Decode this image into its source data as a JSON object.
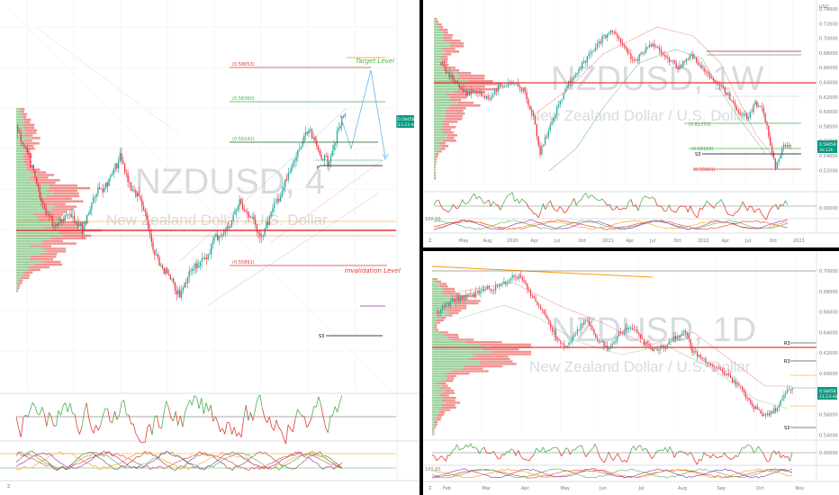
{
  "colors": {
    "up": "#089981",
    "up_fill": "#26a69a",
    "down": "#f23645",
    "green": "#4caf50",
    "red": "#e53935",
    "orange": "#ff9800",
    "purple": "#9c27b0",
    "grid": "#eeeeee",
    "axis": "#787b86",
    "price_tag": "#089981"
  },
  "chart_data": [
    {
      "type": "candlestick",
      "panel": "left",
      "symbol_watermark": "NZDUSD, 4",
      "subtitle_watermark": "New Zealand Dollar / U.S. Dollar",
      "annotations": {
        "target": "Target Level",
        "invalidation": "Invalidation Level"
      },
      "levels": [
        {
          "label": "(0.58653)",
          "value": 0.5865,
          "color": "#ff9800"
        },
        {
          "label": "(0.58360)",
          "value": 0.5836,
          "color": "#4caf50"
        },
        {
          "label": "(0.58242)",
          "value": 0.5824,
          "color": "#4caf50"
        },
        {
          "label": "(0.55891)",
          "value": 0.5589,
          "color": "#e53935"
        }
      ],
      "pivot_label": "S3",
      "pivot_marker": "P",
      "last_price": "0.58458",
      "last_price_time": "11:23:48",
      "series_trend": "downtrend then recovery to highs"
    },
    {
      "type": "candlestick",
      "panel": "top-right",
      "symbol_watermark": "NZDUSD, 1W",
      "subtitle_watermark": "New Zealand Dollar / U.S. Dollar",
      "axis_currency": "USD",
      "y_ticks": [
        "0.74000",
        "0.72000",
        "0.70000",
        "0.68000",
        "0.66000",
        "0.64000",
        "0.62000",
        "0.60000",
        "0.58000",
        "0.56000",
        "0.54000",
        "0.52000"
      ],
      "x_ticks": [
        "May",
        "Aug",
        "2020",
        "Apr",
        "Jul",
        "Oct",
        "2021",
        "Apr",
        "Jul",
        "Oct",
        "2022",
        "Apr",
        "Jul",
        "Oct",
        "2023"
      ],
      "levels": [
        {
          "label": "(0.61270)",
          "value": 0.6127,
          "color": "#4caf50"
        },
        {
          "label": "(0.58109)",
          "value": 0.5811,
          "color": "#4caf50"
        },
        {
          "label": "(0.55601)",
          "value": 0.556,
          "color": "#e53935"
        }
      ],
      "pivot_label": "S3",
      "indicator_ticks": [
        "0.00000",
        "100.00"
      ],
      "last_price": "0.58458",
      "last_price_time": "3d 12h"
    },
    {
      "type": "candlestick",
      "panel": "bottom-right",
      "symbol_watermark": "NZDUSD, 1D",
      "subtitle_watermark": "New Zealand Dollar / U.S. Dollar",
      "y_ticks": [
        "0.70000",
        "0.68000",
        "0.66000",
        "0.64000",
        "0.62000",
        "0.60000",
        "0.58000",
        "0.56000",
        "0.54000"
      ],
      "x_ticks": [
        "Feb",
        "Mar",
        "Apr",
        "May",
        "Jun",
        "Jul",
        "Aug",
        "Sep",
        "Oct",
        "Nov"
      ],
      "pivot_labels": [
        "R3",
        "R3",
        "S3"
      ],
      "indicator_ticks": [
        "0.00000",
        "100.00"
      ],
      "last_price": "0.58458",
      "last_price_time": "11:23:48"
    }
  ],
  "axis_corner_label": "Z"
}
